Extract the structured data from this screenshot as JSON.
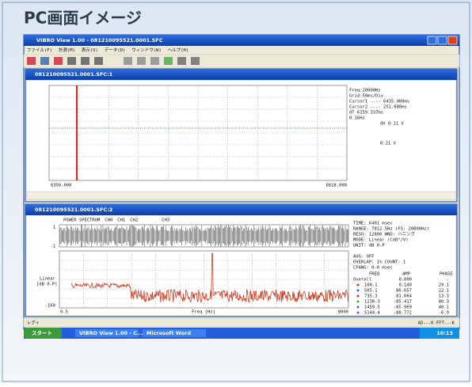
{
  "header": {
    "title": "PC画面イメージ"
  },
  "window": {
    "title": "VIBRO View 1.00 - 081210095521.0001.SFC",
    "menu": [
      "ファイル(F)",
      "計測(M)",
      "表示(V)",
      "データ(D)",
      "ウィンドウ(W)",
      "ヘルプ(H)"
    ]
  },
  "chart_window_1": {
    "title": "081210095521.0001.SFC:1",
    "x_left": "6350.000",
    "x_right": "6818.000",
    "info": [
      "Freq:20000Hz",
      "Grid:50ms/Div",
      "Cursor1 ---- 6435.000ms",
      "Cursor2 ---- 251.680ms",
      "dT 6159.337ms",
      "0.16Hz",
      "dV  0.11 V",
      "0.21 V"
    ]
  },
  "chart_window_2": {
    "title": "081210095521.0001.SFC:2",
    "channels": [
      "POWER SPECTRUM",
      "CH0",
      "CH1",
      "CH2",
      "CH3"
    ],
    "y_labels": [
      "1",
      "-1",
      "-160"
    ],
    "mode_label": "Linear",
    "unit_label": "[dB 0-P]",
    "x_left": "0.5",
    "x_label": "Freq [Hz]",
    "x_right": "8000",
    "info": [
      "TIME: 6401 msec",
      "RANGE: 7812.5Hz (FS: 20000Hz)",
      "RESO: 12800  WND: ハニング",
      "MODE: Linear (Cd8°/V)",
      "UNIT: dB 0-P",
      "",
      "AVG: OFF",
      "OVERLAP: 1%  COUNT: 1",
      "CFANG: 0-0 msec"
    ],
    "table": {
      "header": [
        "FREQ",
        "AMP",
        "PHASE"
      ],
      "rows": [
        [
          "Overall",
          "0.000",
          "-"
        ],
        [
          "100.1",
          "0.140",
          "29.1"
        ],
        [
          "505.1",
          "86.657",
          "22.1"
        ],
        [
          "735.3",
          "81.064",
          "13.3"
        ],
        [
          "1230.3",
          "-85.417",
          "80.3"
        ],
        [
          "1459.5",
          "-85.969",
          "40.1"
        ],
        [
          "5144.4",
          "-88.772",
          "-6.9"
        ]
      ]
    }
  },
  "status_bar": {
    "left": "レディ",
    "right": "AD---K  FFT---K"
  },
  "taskbar": {
    "start": "スタート",
    "items": [
      "VIBRO View 1.00 - C...",
      "Microsoft Word"
    ],
    "clock": "10:13"
  }
}
